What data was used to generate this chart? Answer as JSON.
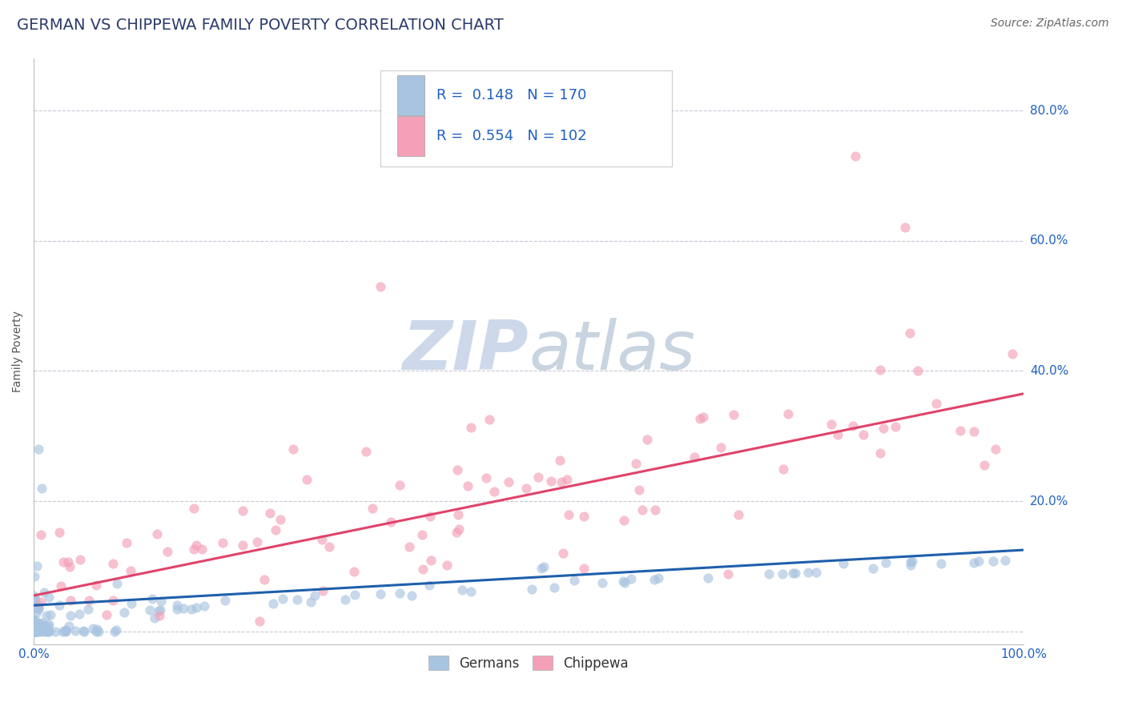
{
  "title": "GERMAN VS CHIPPEWA FAMILY POVERTY CORRELATION CHART",
  "source": "Source: ZipAtlas.com",
  "ylabel": "Family Poverty",
  "xlim": [
    0.0,
    1.0
  ],
  "ylim": [
    -0.02,
    0.88
  ],
  "ytick_vals": [
    0.0,
    0.2,
    0.4,
    0.6,
    0.8
  ],
  "ytick_labels": [
    "",
    "20.0%",
    "40.0%",
    "60.0%",
    "80.0%"
  ],
  "xtick_vals": [
    0.0,
    1.0
  ],
  "xtick_labels": [
    "0.0%",
    "100.0%"
  ],
  "german_R": 0.148,
  "german_N": 170,
  "chippewa_R": 0.554,
  "chippewa_N": 102,
  "german_color": "#a8c4e0",
  "chippewa_color": "#f4a0b8",
  "german_line_color": "#1e5fab",
  "chippewa_line_color": "#e0436a",
  "title_color": "#2a3a6a",
  "axis_label_color": "#555555",
  "tick_color": "#2060c0",
  "grid_color": "#c8c8d8",
  "watermark_color": "#cdd8ea",
  "background_color": "#ffffff",
  "title_fontsize": 14,
  "axis_label_fontsize": 10,
  "tick_fontsize": 11,
  "source_fontsize": 10,
  "legend_fontsize": 13,
  "german_line_y0": 0.04,
  "german_line_y1": 0.125,
  "chippewa_line_y0": 0.055,
  "chippewa_line_y1": 0.365
}
